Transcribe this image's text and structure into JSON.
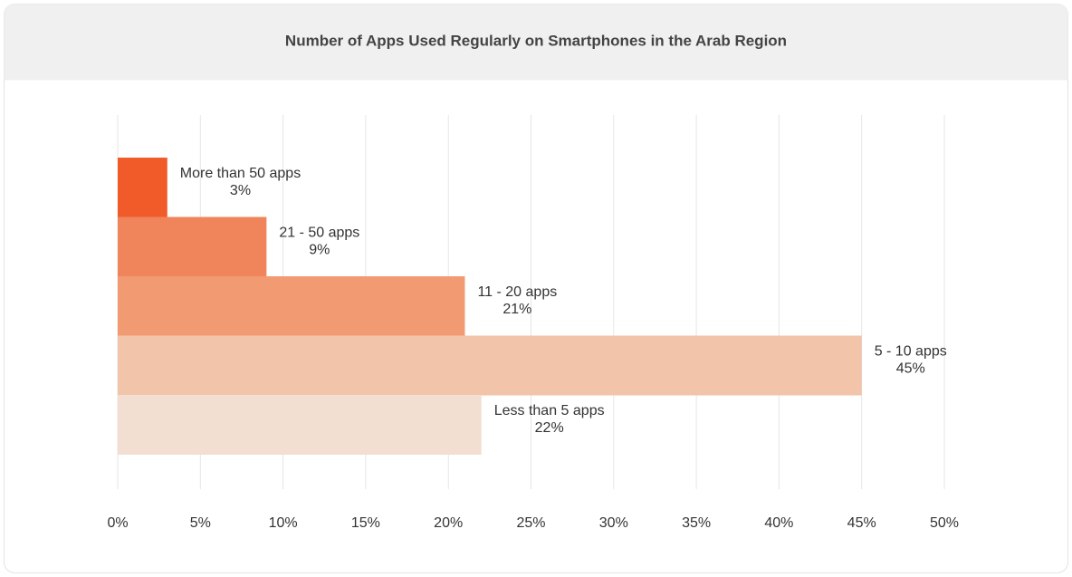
{
  "chart_data": {
    "type": "bar",
    "orientation": "horizontal",
    "title": "Number of Apps Used Regularly on Smartphones in the Arab Region",
    "categories": [
      "More than 50 apps",
      "21 - 50 apps",
      "11 - 20 apps",
      "5 - 10 apps",
      "Less than 5 apps"
    ],
    "values": [
      3,
      9,
      21,
      45,
      22
    ],
    "value_labels": [
      "3%",
      "9%",
      "21%",
      "45%",
      "22%"
    ],
    "colors": [
      "#f15a29",
      "#f0845a",
      "#f29a72",
      "#f2c4aa",
      "#f2dfd2"
    ],
    "xlim": [
      0,
      50
    ],
    "xticks": [
      {
        "value": 0,
        "label": "0%"
      },
      {
        "value": 5,
        "label": "5%"
      },
      {
        "value": 10,
        "label": "10%"
      },
      {
        "value": 15,
        "label": "15%"
      },
      {
        "value": 20,
        "label": "20%"
      },
      {
        "value": 25,
        "label": "25%"
      },
      {
        "value": 30,
        "label": "30%"
      },
      {
        "value": 35,
        "label": "35%"
      },
      {
        "value": 40,
        "label": "40%"
      },
      {
        "value": 45,
        "label": "45%"
      },
      {
        "value": 50,
        "label": "50%"
      }
    ],
    "grid": true
  }
}
